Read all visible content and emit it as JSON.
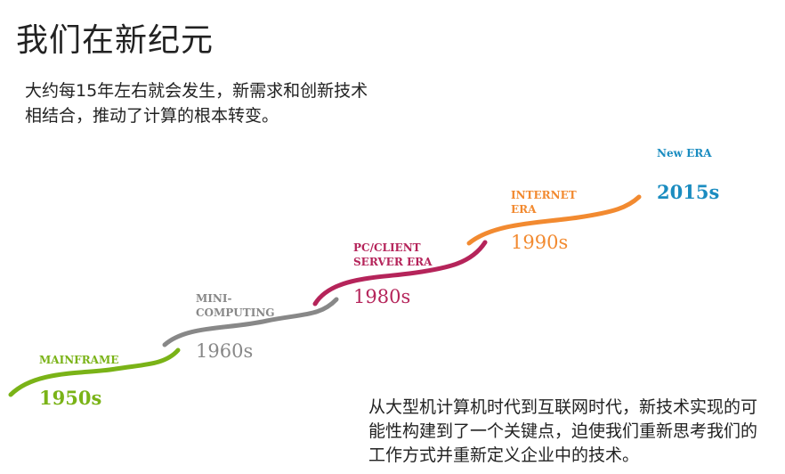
{
  "title": "我们在新纪元",
  "intro": "大约每15年左右就会发生，新需求和创新技术相结合，推动了计算的根本转变。",
  "summary": "从大型机计算机时代到互联网时代，新技术实现的可能性构建到了一个关键点，迫使我们重新思考我们的工作方式并重新定义企业中的技术。",
  "eras": [
    {
      "label_lines": [
        "MAINFRAME"
      ],
      "year": "1950s",
      "color": "#7ab317"
    },
    {
      "label_lines": [
        "MINI-",
        "COMPUTING"
      ],
      "year": "1960s",
      "color": "#888888"
    },
    {
      "label_lines": [
        "PC/CLIENT",
        "SERVER ERA"
      ],
      "year": "1980s",
      "color": "#b5245a"
    },
    {
      "label_lines": [
        "INTERNET",
        "ERA"
      ],
      "year": "1990s",
      "color": "#f28a30"
    },
    {
      "label_lines": [
        "New ERA"
      ],
      "year": "2015s",
      "color": "#1a8cc0"
    }
  ]
}
